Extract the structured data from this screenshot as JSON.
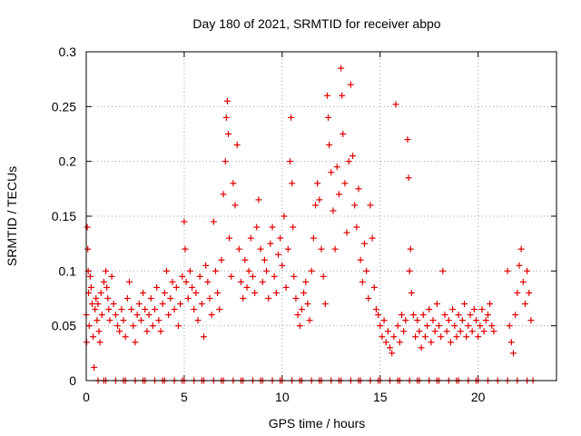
{
  "chart_data": {
    "type": "scatter",
    "title": "Day 180 of 2021, SRMTID for receiver abpo",
    "xlabel": "GPS time / hours",
    "ylabel": "SRMTID / TECUs",
    "xlim": [
      0,
      24
    ],
    "ylim": [
      0,
      0.3
    ],
    "xticks": [
      0,
      5,
      10,
      15,
      20
    ],
    "yticks": [
      0,
      0.05,
      0.1,
      0.15,
      0.2,
      0.25,
      0.3
    ],
    "xtick_labels": [
      "0",
      "5",
      "10",
      "15",
      "20"
    ],
    "ytick_labels": [
      "0",
      "0.05",
      "0.1",
      "0.15",
      "0.2",
      "0.25",
      "0.3"
    ],
    "grid": true,
    "marker": "+",
    "color": "#e00000",
    "series": [
      {
        "name": "SRMTID",
        "points": [
          [
            0.0,
            0.06
          ],
          [
            0.02,
            0.035
          ],
          [
            0.05,
            0.14
          ],
          [
            0.08,
            0.12
          ],
          [
            0.1,
            0.1
          ],
          [
            0.12,
            0.08
          ],
          [
            0.15,
            0.05
          ],
          [
            0.2,
            0.095
          ],
          [
            0.25,
            0.085
          ],
          [
            0.3,
            0.07
          ],
          [
            0.35,
            0.04
          ],
          [
            0.4,
            0.012
          ],
          [
            0.45,
            0.065
          ],
          [
            0.5,
            0.075
          ],
          [
            0.55,
            0.055
          ],
          [
            0.6,
            0.07
          ],
          [
            0.65,
            0.045
          ],
          [
            0.7,
            0.035
          ],
          [
            0.75,
            0.08
          ],
          [
            0.8,
            0.06
          ],
          [
            0.9,
            0.09
          ],
          [
            1.0,
            0.1
          ],
          [
            1.05,
            0.085
          ],
          [
            1.1,
            0.075
          ],
          [
            1.15,
            0.065
          ],
          [
            1.2,
            0.055
          ],
          [
            1.3,
            0.095
          ],
          [
            1.4,
            0.07
          ],
          [
            1.5,
            0.06
          ],
          [
            1.6,
            0.05
          ],
          [
            1.7,
            0.045
          ],
          [
            1.8,
            0.065
          ],
          [
            1.9,
            0.055
          ],
          [
            2.0,
            0.04
          ],
          [
            2.1,
            0.075
          ],
          [
            2.2,
            0.09
          ],
          [
            2.3,
            0.065
          ],
          [
            2.4,
            0.05
          ],
          [
            2.5,
            0.035
          ],
          [
            2.6,
            0.06
          ],
          [
            2.7,
            0.07
          ],
          [
            2.8,
            0.055
          ],
          [
            2.9,
            0.08
          ],
          [
            3.0,
            0.065
          ],
          [
            3.1,
            0.045
          ],
          [
            3.2,
            0.06
          ],
          [
            3.3,
            0.075
          ],
          [
            3.4,
            0.05
          ],
          [
            3.5,
            0.065
          ],
          [
            3.6,
            0.085
          ],
          [
            3.7,
            0.055
          ],
          [
            3.8,
            0.045
          ],
          [
            3.9,
            0.07
          ],
          [
            4.0,
            0.08
          ],
          [
            4.1,
            0.1
          ],
          [
            4.2,
            0.06
          ],
          [
            4.3,
            0.075
          ],
          [
            4.4,
            0.09
          ],
          [
            4.5,
            0.065
          ],
          [
            4.6,
            0.085
          ],
          [
            4.7,
            0.05
          ],
          [
            4.8,
            0.07
          ],
          [
            4.9,
            0.095
          ],
          [
            5.0,
            0.145
          ],
          [
            5.05,
            0.12
          ],
          [
            5.1,
            0.09
          ],
          [
            5.2,
            0.075
          ],
          [
            5.3,
            0.1
          ],
          [
            5.4,
            0.085
          ],
          [
            5.5,
            0.065
          ],
          [
            5.6,
            0.08
          ],
          [
            5.7,
            0.055
          ],
          [
            5.8,
            0.095
          ],
          [
            5.9,
            0.07
          ],
          [
            6.0,
            0.04
          ],
          [
            6.1,
            0.105
          ],
          [
            6.2,
            0.09
          ],
          [
            6.3,
            0.075
          ],
          [
            6.4,
            0.06
          ],
          [
            6.5,
            0.145
          ],
          [
            6.6,
            0.1
          ],
          [
            6.7,
            0.08
          ],
          [
            6.8,
            0.065
          ],
          [
            6.9,
            0.11
          ],
          [
            7.0,
            0.17
          ],
          [
            7.1,
            0.2
          ],
          [
            7.15,
            0.24
          ],
          [
            7.2,
            0.255
          ],
          [
            7.25,
            0.225
          ],
          [
            7.3,
            0.13
          ],
          [
            7.4,
            0.095
          ],
          [
            7.5,
            0.18
          ],
          [
            7.6,
            0.16
          ],
          [
            7.7,
            0.215
          ],
          [
            7.8,
            0.12
          ],
          [
            7.9,
            0.09
          ],
          [
            8.0,
            0.075
          ],
          [
            8.1,
            0.11
          ],
          [
            8.2,
            0.085
          ],
          [
            8.3,
            0.1
          ],
          [
            8.4,
            0.13
          ],
          [
            8.5,
            0.095
          ],
          [
            8.6,
            0.08
          ],
          [
            8.7,
            0.14
          ],
          [
            8.8,
            0.165
          ],
          [
            8.9,
            0.12
          ],
          [
            9.0,
            0.09
          ],
          [
            9.1,
            0.11
          ],
          [
            9.2,
            0.1
          ],
          [
            9.3,
            0.075
          ],
          [
            9.4,
            0.125
          ],
          [
            9.5,
            0.14
          ],
          [
            9.6,
            0.095
          ],
          [
            9.7,
            0.08
          ],
          [
            9.8,
            0.115
          ],
          [
            9.9,
            0.13
          ],
          [
            10.0,
            0.105
          ],
          [
            10.1,
            0.15
          ],
          [
            10.2,
            0.085
          ],
          [
            10.3,
            0.12
          ],
          [
            10.4,
            0.2
          ],
          [
            10.45,
            0.24
          ],
          [
            10.5,
            0.18
          ],
          [
            10.55,
            0.14
          ],
          [
            10.6,
            0.095
          ],
          [
            10.7,
            0.075
          ],
          [
            10.8,
            0.06
          ],
          [
            10.9,
            0.05
          ],
          [
            11.0,
            0.065
          ],
          [
            11.1,
            0.08
          ],
          [
            11.2,
            0.09
          ],
          [
            11.3,
            0.07
          ],
          [
            11.4,
            0.055
          ],
          [
            11.5,
            0.1
          ],
          [
            11.6,
            0.13
          ],
          [
            11.7,
            0.16
          ],
          [
            11.8,
            0.18
          ],
          [
            11.9,
            0.165
          ],
          [
            12.0,
            0.12
          ],
          [
            12.1,
            0.095
          ],
          [
            12.2,
            0.07
          ],
          [
            12.3,
            0.26
          ],
          [
            12.35,
            0.24
          ],
          [
            12.4,
            0.215
          ],
          [
            12.5,
            0.19
          ],
          [
            12.6,
            0.155
          ],
          [
            12.7,
            0.12
          ],
          [
            12.8,
            0.195
          ],
          [
            12.9,
            0.17
          ],
          [
            13.0,
            0.285
          ],
          [
            13.05,
            0.26
          ],
          [
            13.1,
            0.225
          ],
          [
            13.2,
            0.18
          ],
          [
            13.3,
            0.135
          ],
          [
            13.4,
            0.2
          ],
          [
            13.5,
            0.27
          ],
          [
            13.6,
            0.205
          ],
          [
            13.7,
            0.16
          ],
          [
            13.8,
            0.14
          ],
          [
            13.9,
            0.175
          ],
          [
            14.0,
            0.11
          ],
          [
            14.1,
            0.09
          ],
          [
            14.2,
            0.125
          ],
          [
            14.3,
            0.1
          ],
          [
            14.4,
            0.075
          ],
          [
            14.5,
            0.16
          ],
          [
            14.6,
            0.13
          ],
          [
            14.7,
            0.085
          ],
          [
            14.8,
            0.065
          ],
          [
            14.9,
            0.06
          ],
          [
            15.0,
            0.05
          ],
          [
            15.1,
            0.04
          ],
          [
            15.2,
            0.055
          ],
          [
            15.3,
            0.035
          ],
          [
            15.4,
            0.045
          ],
          [
            15.5,
            0.03
          ],
          [
            15.6,
            0.025
          ],
          [
            15.7,
            0.04
          ],
          [
            15.8,
            0.252
          ],
          [
            15.9,
            0.05
          ],
          [
            16.0,
            0.035
          ],
          [
            16.1,
            0.06
          ],
          [
            16.2,
            0.045
          ],
          [
            16.3,
            0.055
          ],
          [
            16.4,
            0.22
          ],
          [
            16.45,
            0.185
          ],
          [
            16.5,
            0.1
          ],
          [
            16.55,
            0.12
          ],
          [
            16.6,
            0.08
          ],
          [
            16.7,
            0.06
          ],
          [
            16.8,
            0.04
          ],
          [
            16.9,
            0.055
          ],
          [
            17.0,
            0.045
          ],
          [
            17.1,
            0.03
          ],
          [
            17.2,
            0.06
          ],
          [
            17.3,
            0.04
          ],
          [
            17.4,
            0.05
          ],
          [
            17.5,
            0.065
          ],
          [
            17.6,
            0.035
          ],
          [
            17.7,
            0.055
          ],
          [
            17.8,
            0.045
          ],
          [
            17.9,
            0.07
          ],
          [
            18.0,
            0.05
          ],
          [
            18.1,
            0.04
          ],
          [
            18.2,
            0.1
          ],
          [
            18.3,
            0.06
          ],
          [
            18.4,
            0.045
          ],
          [
            18.5,
            0.055
          ],
          [
            18.6,
            0.035
          ],
          [
            18.7,
            0.065
          ],
          [
            18.8,
            0.05
          ],
          [
            18.9,
            0.04
          ],
          [
            19.0,
            0.06
          ],
          [
            19.1,
            0.045
          ],
          [
            19.2,
            0.055
          ],
          [
            19.3,
            0.07
          ],
          [
            19.4,
            0.04
          ],
          [
            19.5,
            0.05
          ],
          [
            19.6,
            0.06
          ],
          [
            19.7,
            0.045
          ],
          [
            19.8,
            0.065
          ],
          [
            19.9,
            0.055
          ],
          [
            20.0,
            0.04
          ],
          [
            20.1,
            0.05
          ],
          [
            20.2,
            0.065
          ],
          [
            20.3,
            0.045
          ],
          [
            20.4,
            0.055
          ],
          [
            20.5,
            0.06
          ],
          [
            20.6,
            0.07
          ],
          [
            20.7,
            0.05
          ],
          [
            20.8,
            0.045
          ],
          [
            21.5,
            0.1
          ],
          [
            21.6,
            0.05
          ],
          [
            21.7,
            0.035
          ],
          [
            21.8,
            0.025
          ],
          [
            21.9,
            0.06
          ],
          [
            22.0,
            0.08
          ],
          [
            22.1,
            0.105
          ],
          [
            22.2,
            0.12
          ],
          [
            22.3,
            0.09
          ],
          [
            22.4,
            0.07
          ],
          [
            22.5,
            0.1
          ],
          [
            22.6,
            0.08
          ],
          [
            22.7,
            0.055
          ],
          [
            0.6,
            0.0
          ],
          [
            1.0,
            0.0
          ],
          [
            1.5,
            0.0
          ],
          [
            2.0,
            0.0
          ],
          [
            2.5,
            0.0
          ],
          [
            3.0,
            0.0
          ],
          [
            3.5,
            0.0
          ],
          [
            4.0,
            0.0
          ],
          [
            4.5,
            0.0
          ],
          [
            5.0,
            0.0
          ],
          [
            5.5,
            0.0
          ],
          [
            6.0,
            0.0
          ],
          [
            6.5,
            0.0
          ],
          [
            7.0,
            0.0
          ],
          [
            7.5,
            0.0
          ],
          [
            8.0,
            0.0
          ],
          [
            8.5,
            0.0
          ],
          [
            9.0,
            0.0
          ],
          [
            9.5,
            0.0
          ],
          [
            10.0,
            0.0
          ],
          [
            10.5,
            0.0
          ],
          [
            11.0,
            0.0
          ],
          [
            11.5,
            0.0
          ],
          [
            12.0,
            0.0
          ],
          [
            12.5,
            0.0
          ],
          [
            13.0,
            0.0
          ],
          [
            13.5,
            0.0
          ],
          [
            14.0,
            0.0
          ],
          [
            14.5,
            0.0
          ],
          [
            15.0,
            0.0
          ],
          [
            15.5,
            0.0
          ],
          [
            16.0,
            0.0
          ],
          [
            16.5,
            0.0
          ],
          [
            17.0,
            0.0
          ],
          [
            17.5,
            0.0
          ],
          [
            18.0,
            0.0
          ],
          [
            18.5,
            0.0
          ],
          [
            19.0,
            0.0
          ],
          [
            19.5,
            0.0
          ],
          [
            20.0,
            0.0
          ],
          [
            20.5,
            0.0
          ],
          [
            21.0,
            0.0
          ],
          [
            21.5,
            0.0
          ],
          [
            22.0,
            0.0
          ],
          [
            22.5,
            0.0
          ],
          [
            22.8,
            0.0
          ],
          [
            0.9,
            0.0
          ],
          [
            1.9,
            0.0
          ],
          [
            2.9,
            0.0
          ],
          [
            3.9,
            0.0
          ],
          [
            4.9,
            0.0
          ],
          [
            5.9,
            0.0
          ],
          [
            6.9,
            0.0
          ],
          [
            7.9,
            0.0
          ],
          [
            8.9,
            0.0
          ],
          [
            9.9,
            0.0
          ],
          [
            10.9,
            0.0
          ],
          [
            11.9,
            0.0
          ],
          [
            12.9,
            0.0
          ],
          [
            13.9,
            0.0
          ],
          [
            14.9,
            0.0
          ],
          [
            15.9,
            0.0
          ],
          [
            16.9,
            0.0
          ],
          [
            17.9,
            0.0
          ],
          [
            18.9,
            0.0
          ],
          [
            19.9,
            0.0
          ]
        ]
      }
    ]
  }
}
